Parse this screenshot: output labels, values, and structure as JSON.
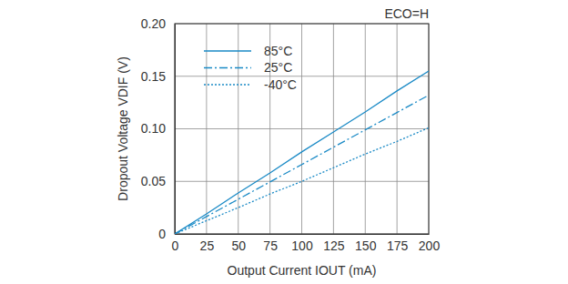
{
  "chart_data": {
    "type": "line",
    "annotation": "ECO=H",
    "x_label": "Output Current IOUT (mA)",
    "y_label": "Dropout Voltage VDIF (V)",
    "x": [
      0,
      25,
      50,
      75,
      100,
      125,
      150,
      175,
      200
    ],
    "series": [
      {
        "name": "85°C",
        "color": "#1a8ac6",
        "line_style": "solid",
        "values": [
          0,
          0.019,
          0.039,
          0.058,
          0.078,
          0.097,
          0.116,
          0.136,
          0.155
        ]
      },
      {
        "name": "25°C",
        "color": "#1a8ac6",
        "line_style": "dashdot",
        "values": [
          0,
          0.0165,
          0.033,
          0.0495,
          0.066,
          0.0825,
          0.099,
          0.1155,
          0.132
        ]
      },
      {
        "name": "-40°C",
        "color": "#1a8ac6",
        "line_style": "dotted",
        "values": [
          0,
          0.0126,
          0.025,
          0.038,
          0.05,
          0.063,
          0.076,
          0.088,
          0.101
        ]
      }
    ],
    "xlim": [
      0,
      200
    ],
    "xticks": [
      0,
      25,
      50,
      75,
      100,
      125,
      150,
      175,
      200
    ],
    "ylim": [
      0,
      0.2
    ],
    "yticks": [
      0,
      0.05,
      {
        "value": 0.1,
        "label": "0.10"
      },
      0.15,
      {
        "value": 0.2,
        "label": "0.20"
      }
    ],
    "grid": true,
    "legend": "upper left"
  }
}
